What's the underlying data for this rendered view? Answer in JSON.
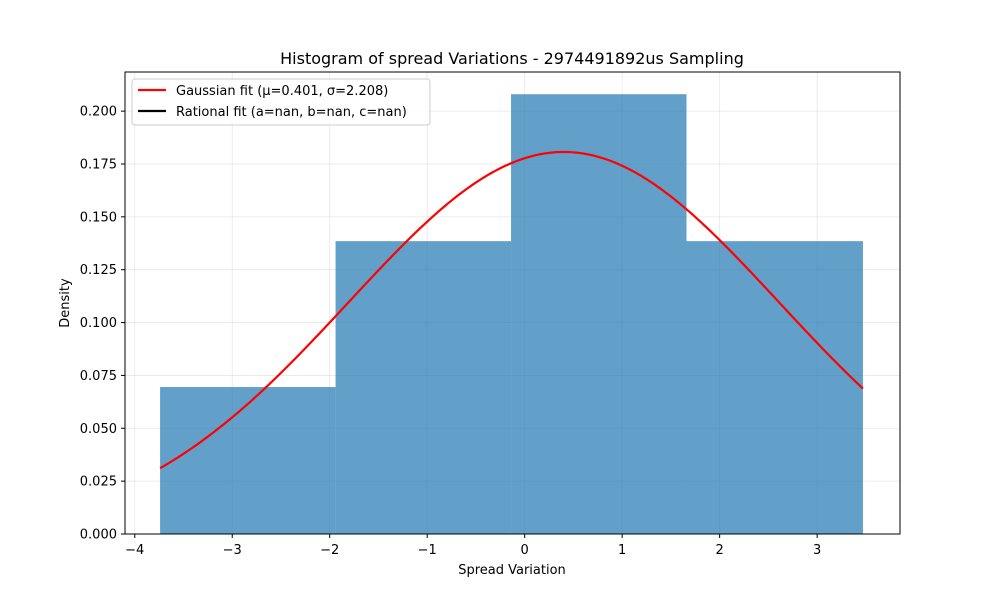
{
  "chart_data": {
    "type": "bar",
    "title": "Histogram of spread Variations - 2974491892us Sampling",
    "xlabel": "Spread Variation",
    "ylabel": "Density",
    "xlim": [
      -4.1,
      3.85
    ],
    "ylim": [
      0,
      0.2185
    ],
    "xticks": [
      -4,
      -3,
      -2,
      -1,
      0,
      1,
      2,
      3
    ],
    "xtick_labels": [
      "−4",
      "−3",
      "−2",
      "−1",
      "0",
      "1",
      "2",
      "3"
    ],
    "yticks": [
      0,
      0.025,
      0.05,
      0.075,
      0.1,
      0.125,
      0.15,
      0.175,
      0.2
    ],
    "ytick_labels": [
      "0.000",
      "0.025",
      "0.050",
      "0.075",
      "0.100",
      "0.125",
      "0.150",
      "0.175",
      "0.200"
    ],
    "grid": true,
    "legend_position": "top-left",
    "bins": [
      {
        "x0": -3.74,
        "x1": -1.94,
        "density": 0.0695
      },
      {
        "x0": -1.94,
        "x1": -0.14,
        "density": 0.1385
      },
      {
        "x0": -0.14,
        "x1": 1.66,
        "density": 0.208
      },
      {
        "x0": 1.66,
        "x1": 3.47,
        "density": 0.1385
      }
    ],
    "bar_color": "#1f77b4",
    "series": [
      {
        "name": "Gaussian fit (μ=0.401, σ=2.208)",
        "type": "line",
        "color": "#ff0000",
        "mu": 0.401,
        "sigma": 2.208,
        "x_range": [
          -3.74,
          3.47
        ]
      },
      {
        "name": "Rational fit (a=nan, b=nan, c=nan)",
        "type": "line",
        "color": "#000000"
      }
    ]
  }
}
